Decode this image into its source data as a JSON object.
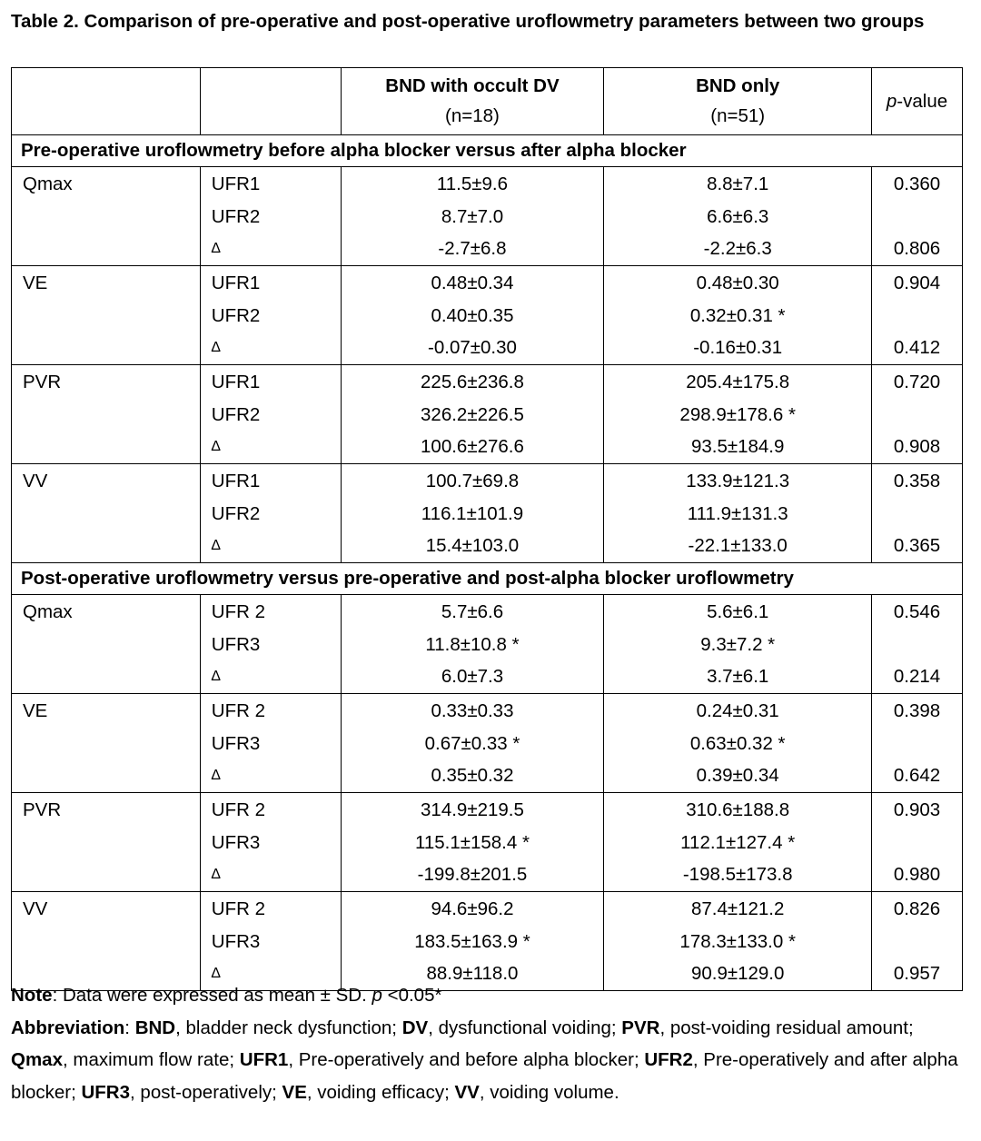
{
  "title": "Table 2. Comparison of pre-operative and post-operative uroflowmetry parameters between two groups",
  "headers": {
    "col3_line1": "BND with occult DV",
    "col3_line2": "(n=18)",
    "col4_line1": "BND only",
    "col4_line2": "(n=51)",
    "pvalue_italic": "p",
    "pvalue_rest": "-value"
  },
  "sections": [
    {
      "title": "Pre-operative uroflowmetry before alpha blocker versus after alpha blocker",
      "groups": [
        {
          "label": "Qmax",
          "rows": [
            {
              "sub": "UFR1",
              "a": "11.5±9.6",
              "b": "8.8±7.1",
              "p": "0.360"
            },
            {
              "sub": "UFR2",
              "a": "8.7±7.0",
              "b": "6.6±6.3",
              "p": ""
            },
            {
              "sub": "∆",
              "a": "-2.7±6.8",
              "b": "-2.2±6.3",
              "p": "0.806"
            }
          ]
        },
        {
          "label": "VE",
          "rows": [
            {
              "sub": "UFR1",
              "a": "0.48±0.34",
              "b": "0.48±0.30",
              "p": "0.904"
            },
            {
              "sub": "UFR2",
              "a": "0.40±0.35",
              "b": "0.32±0.31 *",
              "p": ""
            },
            {
              "sub": "∆",
              "a": "-0.07±0.30",
              "b": "-0.16±0.31",
              "p": "0.412"
            }
          ]
        },
        {
          "label": "PVR",
          "rows": [
            {
              "sub": "UFR1",
              "a": "225.6±236.8",
              "b": "205.4±175.8",
              "p": "0.720"
            },
            {
              "sub": "UFR2",
              "a": "326.2±226.5",
              "b": "298.9±178.6 *",
              "p": ""
            },
            {
              "sub": "∆",
              "a": "100.6±276.6",
              "b": "93.5±184.9",
              "p": "0.908"
            }
          ]
        },
        {
          "label": "VV",
          "rows": [
            {
              "sub": "UFR1",
              "a": "100.7±69.8",
              "b": "133.9±121.3",
              "p": "0.358"
            },
            {
              "sub": "UFR2",
              "a": "116.1±101.9",
              "b": "111.9±131.3",
              "p": ""
            },
            {
              "sub": "∆",
              "a": "15.4±103.0",
              "b": "-22.1±133.0",
              "p": "0.365"
            }
          ]
        }
      ]
    },
    {
      "title": "Post-operative uroflowmetry versus pre-operative and post-alpha blocker uroflowmetry",
      "groups": [
        {
          "label": "Qmax",
          "rows": [
            {
              "sub": "UFR 2",
              "a": "5.7±6.6",
              "b": "5.6±6.1",
              "p": "0.546"
            },
            {
              "sub": "UFR3",
              "a": "11.8±10.8 *",
              "b": "9.3±7.2 *",
              "p": ""
            },
            {
              "sub": "∆",
              "a": "6.0±7.3",
              "b": "3.7±6.1",
              "p": "0.214"
            }
          ]
        },
        {
          "label": "VE",
          "rows": [
            {
              "sub": "UFR 2",
              "a": "0.33±0.33",
              "b": "0.24±0.31",
              "p": "0.398"
            },
            {
              "sub": "UFR3",
              "a": "0.67±0.33 *",
              "b": "0.63±0.32 *",
              "p": ""
            },
            {
              "sub": "∆",
              "a": "0.35±0.32",
              "b": "0.39±0.34",
              "p": "0.642"
            }
          ]
        },
        {
          "label": "PVR",
          "rows": [
            {
              "sub": "UFR 2",
              "a": "314.9±219.5",
              "b": "310.6±188.8",
              "p": "0.903"
            },
            {
              "sub": "UFR3",
              "a": "115.1±158.4 *",
              "b": "112.1±127.4 *",
              "p": ""
            },
            {
              "sub": "∆",
              "a": "-199.8±201.5",
              "b": "-198.5±173.8",
              "p": "0.980"
            }
          ]
        },
        {
          "label": "VV",
          "rows": [
            {
              "sub": "UFR 2",
              "a": "94.6±96.2",
              "b": "87.4±121.2",
              "p": "0.826"
            },
            {
              "sub": "UFR3",
              "a": "183.5±163.9 *",
              "b": "178.3±133.0 *",
              "p": ""
            },
            {
              "sub": "∆",
              "a": "88.9±118.0",
              "b": "90.9±129.0",
              "p": "0.957"
            }
          ]
        }
      ]
    }
  ],
  "note": {
    "label": "Note",
    "text_before": ": Data were expressed as mean ± SD. ",
    "p_italic": "p",
    "text_after": " <0.05*"
  },
  "abbreviation": {
    "label": "Abbreviation",
    "items": [
      {
        "term": "BND",
        "def": ", bladder neck dysfunction; "
      },
      {
        "term": "DV",
        "def": ", dysfunctional voiding; "
      },
      {
        "term": "PVR",
        "def": ", post-voiding residual amount; "
      },
      {
        "term": "Qmax",
        "def": ", maximum flow rate; "
      },
      {
        "term": "UFR1",
        "def": ", Pre-operatively and before alpha blocker; "
      },
      {
        "term": "UFR2",
        "def": ", Pre-operatively and after alpha blocker; "
      },
      {
        "term": "UFR3",
        "def": ", post-operatively; "
      },
      {
        "term": "VE",
        "def": ", voiding efficacy; "
      },
      {
        "term": "VV",
        "def": ", voiding volume."
      }
    ]
  }
}
